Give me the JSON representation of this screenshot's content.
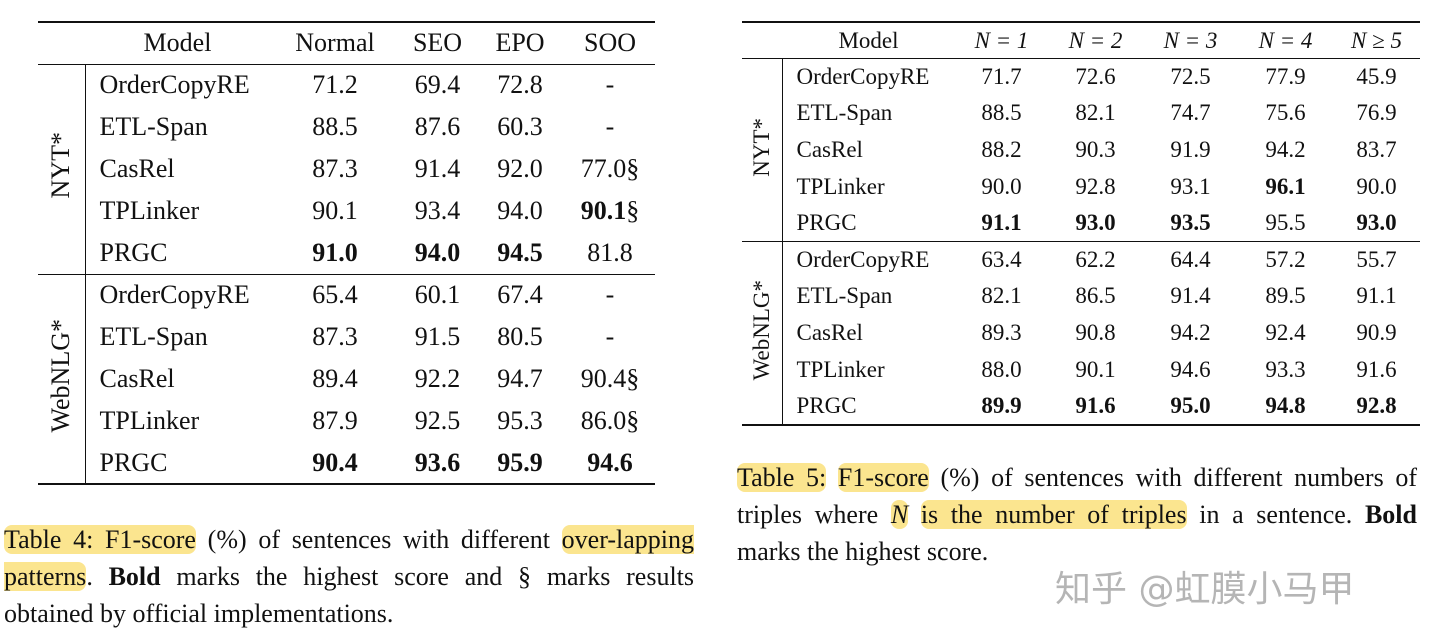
{
  "table4": {
    "columns": [
      "Model",
      "Normal",
      "SEO",
      "EPO",
      "SOO"
    ],
    "groups": [
      {
        "label": "NYT*",
        "rows": [
          {
            "model": "OrderCopyRE",
            "cells": [
              {
                "text": "71.2"
              },
              {
                "text": "69.4"
              },
              {
                "text": "72.8"
              },
              {
                "text": "-"
              }
            ]
          },
          {
            "model": "ETL-Span",
            "cells": [
              {
                "text": "88.5"
              },
              {
                "text": "87.6"
              },
              {
                "text": "60.3"
              },
              {
                "text": "-"
              }
            ]
          },
          {
            "model": "CasRel",
            "cells": [
              {
                "text": "87.3"
              },
              {
                "text": "91.4"
              },
              {
                "text": "92.0"
              },
              {
                "text": "77.0",
                "note": "§"
              }
            ]
          },
          {
            "model": "TPLinker",
            "cells": [
              {
                "text": "90.1"
              },
              {
                "text": "93.4"
              },
              {
                "text": "94.0"
              },
              {
                "text": "90.1",
                "bold": true,
                "note": "§"
              }
            ]
          },
          {
            "model": "PRGC",
            "cells": [
              {
                "text": "91.0",
                "bold": true
              },
              {
                "text": "94.0",
                "bold": true
              },
              {
                "text": "94.5",
                "bold": true
              },
              {
                "text": "81.8"
              }
            ]
          }
        ]
      },
      {
        "label": "WebNLG*",
        "rows": [
          {
            "model": "OrderCopyRE",
            "cells": [
              {
                "text": "65.4"
              },
              {
                "text": "60.1"
              },
              {
                "text": "67.4"
              },
              {
                "text": "-"
              }
            ]
          },
          {
            "model": "ETL-Span",
            "cells": [
              {
                "text": "87.3"
              },
              {
                "text": "91.5"
              },
              {
                "text": "80.5"
              },
              {
                "text": "-"
              }
            ]
          },
          {
            "model": "CasRel",
            "cells": [
              {
                "text": "89.4"
              },
              {
                "text": "92.2"
              },
              {
                "text": "94.7"
              },
              {
                "text": "90.4",
                "note": "§"
              }
            ]
          },
          {
            "model": "TPLinker",
            "cells": [
              {
                "text": "87.9"
              },
              {
                "text": "92.5"
              },
              {
                "text": "95.3"
              },
              {
                "text": "86.0",
                "note": "§"
              }
            ]
          },
          {
            "model": "PRGC",
            "cells": [
              {
                "text": "90.4",
                "bold": true
              },
              {
                "text": "93.6",
                "bold": true
              },
              {
                "text": "95.9",
                "bold": true
              },
              {
                "text": "94.6",
                "bold": true
              }
            ]
          }
        ]
      }
    ]
  },
  "caption4": {
    "segments": [
      {
        "text": "Table 4: F1-score",
        "highlight": true
      },
      {
        "text": " (%) of sentences with different "
      },
      {
        "text": "over-lapping patterns",
        "highlight": true
      },
      {
        "text": ".  "
      },
      {
        "text": "Bold",
        "bold": true
      },
      {
        "text": " marks the highest score and § marks results obtained by official implementations."
      }
    ]
  },
  "table5": {
    "columns": [
      "Model",
      "N = 1",
      "N = 2",
      "N = 3",
      "N = 4",
      "N ≥ 5"
    ],
    "groups": [
      {
        "label": "NYT*",
        "rows": [
          {
            "model": "OrderCopyRE",
            "cells": [
              {
                "text": "71.7"
              },
              {
                "text": "72.6"
              },
              {
                "text": "72.5"
              },
              {
                "text": "77.9"
              },
              {
                "text": "45.9"
              }
            ]
          },
          {
            "model": "ETL-Span",
            "cells": [
              {
                "text": "88.5"
              },
              {
                "text": "82.1"
              },
              {
                "text": "74.7"
              },
              {
                "text": "75.6"
              },
              {
                "text": "76.9"
              }
            ]
          },
          {
            "model": "CasRel",
            "cells": [
              {
                "text": "88.2"
              },
              {
                "text": "90.3"
              },
              {
                "text": "91.9"
              },
              {
                "text": "94.2"
              },
              {
                "text": "83.7"
              }
            ]
          },
          {
            "model": "TPLinker",
            "cells": [
              {
                "text": "90.0"
              },
              {
                "text": "92.8"
              },
              {
                "text": "93.1"
              },
              {
                "text": "96.1",
                "bold": true
              },
              {
                "text": "90.0"
              }
            ]
          },
          {
            "model": "PRGC",
            "cells": [
              {
                "text": "91.1",
                "bold": true
              },
              {
                "text": "93.0",
                "bold": true
              },
              {
                "text": "93.5",
                "bold": true
              },
              {
                "text": "95.5"
              },
              {
                "text": "93.0",
                "bold": true
              }
            ]
          }
        ]
      },
      {
        "label": "WebNLG*",
        "rows": [
          {
            "model": "OrderCopyRE",
            "cells": [
              {
                "text": "63.4"
              },
              {
                "text": "62.2"
              },
              {
                "text": "64.4"
              },
              {
                "text": "57.2"
              },
              {
                "text": "55.7"
              }
            ]
          },
          {
            "model": "ETL-Span",
            "cells": [
              {
                "text": "82.1"
              },
              {
                "text": "86.5"
              },
              {
                "text": "91.4"
              },
              {
                "text": "89.5"
              },
              {
                "text": "91.1"
              }
            ]
          },
          {
            "model": "CasRel",
            "cells": [
              {
                "text": "89.3"
              },
              {
                "text": "90.8"
              },
              {
                "text": "94.2"
              },
              {
                "text": "92.4"
              },
              {
                "text": "90.9"
              }
            ]
          },
          {
            "model": "TPLinker",
            "cells": [
              {
                "text": "88.0"
              },
              {
                "text": "90.1"
              },
              {
                "text": "94.6"
              },
              {
                "text": "93.3"
              },
              {
                "text": "91.6"
              }
            ]
          },
          {
            "model": "PRGC",
            "cells": [
              {
                "text": "89.9",
                "bold": true
              },
              {
                "text": "91.6",
                "bold": true
              },
              {
                "text": "95.0",
                "bold": true
              },
              {
                "text": "94.8",
                "bold": true
              },
              {
                "text": "92.8",
                "bold": true
              }
            ]
          }
        ]
      }
    ]
  },
  "caption5": {
    "segments": [
      {
        "text": "Table 5:",
        "highlight": true
      },
      {
        "text": " "
      },
      {
        "text": "F1-score",
        "highlight": true
      },
      {
        "text": " (%) of sentences with different numbers of triples where "
      },
      {
        "text": "N",
        "highlight": true,
        "italic": true
      },
      {
        "text": " "
      },
      {
        "text": "is the number of triples",
        "highlight": true
      },
      {
        "text": " in a sentence. "
      },
      {
        "text": "Bold",
        "bold": true
      },
      {
        "text": " marks the highest score."
      }
    ]
  },
  "watermark": "知乎 @虹膜小马甲"
}
